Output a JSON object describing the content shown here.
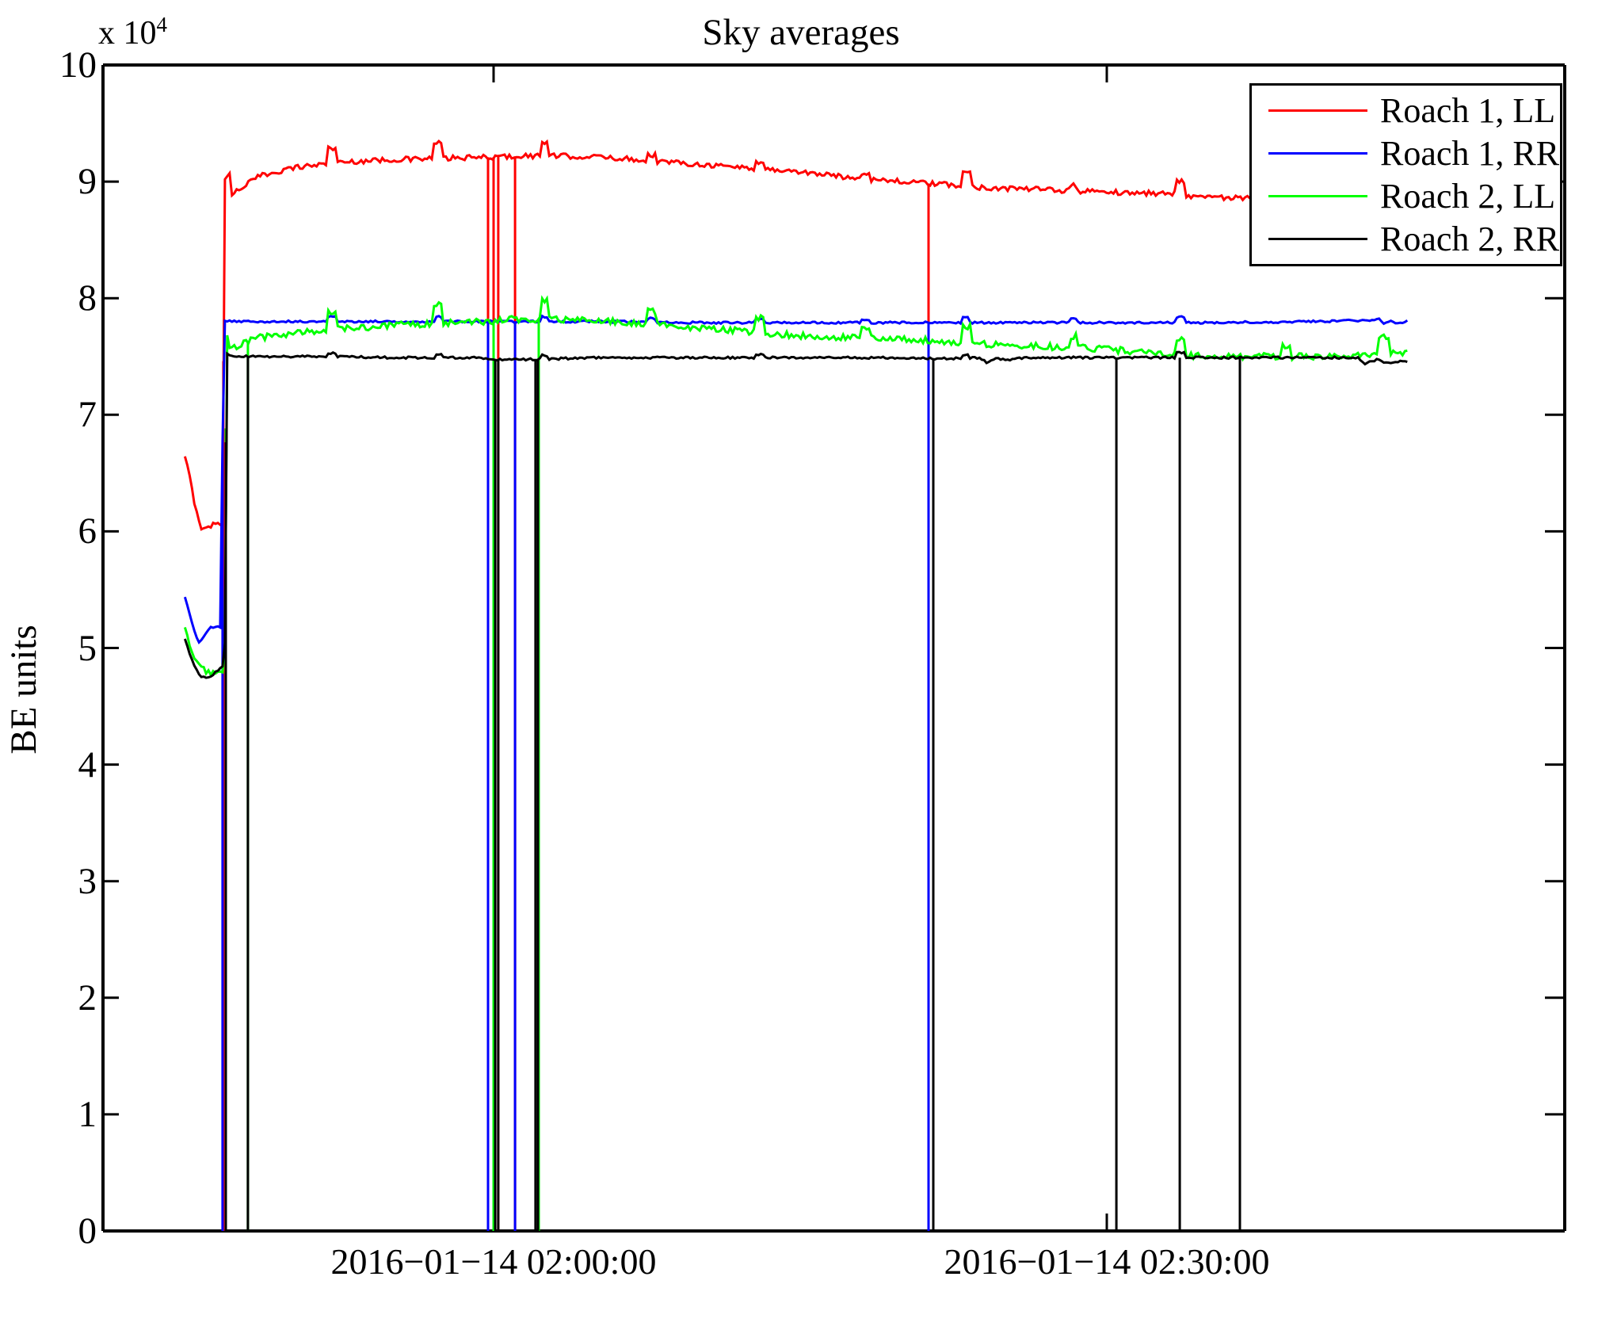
{
  "figure": {
    "title": "Sky averages",
    "y_label": "BE units",
    "y_multiplier_base": "x 10",
    "y_multiplier_exp": "4"
  },
  "legend": {
    "entries": [
      {
        "label": "Roach 1, LL",
        "color": "#ff0000"
      },
      {
        "label": "Roach 1, RR",
        "color": "#0000ff"
      },
      {
        "label": "Roach 2, LL",
        "color": "#00ff00"
      },
      {
        "label": "Roach 2, RR",
        "color": "#000000"
      }
    ]
  },
  "chart_data": {
    "type": "line",
    "title": "Sky averages",
    "xlabel": "",
    "ylabel": "BE units",
    "y_units_multiplier": 10000,
    "ylim": [
      0,
      100000
    ],
    "y_ticks": [
      0,
      1,
      2,
      3,
      4,
      5,
      6,
      7,
      8,
      9,
      10
    ],
    "x_time_base": "2016-01-14 01:45:00",
    "x_ticks": [
      {
        "t_min": 15,
        "label": "2016−01−14 02:00:00"
      },
      {
        "t_min": 45,
        "label": "2016−01−14 02:30:00"
      }
    ],
    "x_range_min": [
      -4.1,
      67.4
    ],
    "grid": false,
    "legend_position": "upper right",
    "note_units": "series points are [minutes after 01:45:00, value in units of 1e4 BE units]",
    "series": [
      {
        "name": "Roach 1, LL",
        "color": "#ff0000",
        "noise": 0.022,
        "points": [
          [
            -0.1,
            6.63
          ],
          [
            0.1,
            6.5
          ],
          [
            0.3,
            6.3
          ],
          [
            0.55,
            6.12
          ],
          [
            0.75,
            6.01
          ],
          [
            1.0,
            6.03
          ],
          [
            1.3,
            6.06
          ],
          [
            1.7,
            6.08
          ],
          [
            1.76,
            6.08
          ],
          [
            1.8,
            8.84
          ],
          [
            2.1,
            8.88
          ],
          [
            3.0,
            8.99
          ],
          [
            3.6,
            9.05
          ],
          [
            5.2,
            9.12
          ],
          [
            7.1,
            9.16
          ],
          [
            8.9,
            9.18
          ],
          [
            10.4,
            9.19
          ],
          [
            12.8,
            9.2
          ],
          [
            15.0,
            9.21
          ],
          [
            16.4,
            9.22
          ],
          [
            18.0,
            9.22
          ],
          [
            20.3,
            9.21
          ],
          [
            21.9,
            9.19
          ],
          [
            23.4,
            9.17
          ],
          [
            25.0,
            9.15
          ],
          [
            26.5,
            9.13
          ],
          [
            28.1,
            9.11
          ],
          [
            29.6,
            9.09
          ],
          [
            31.2,
            9.06
          ],
          [
            32.7,
            9.03
          ],
          [
            34.3,
            9.01
          ],
          [
            35.8,
            8.99
          ],
          [
            37.4,
            8.97
          ],
          [
            38.9,
            8.95
          ],
          [
            40.5,
            8.94
          ],
          [
            42.0,
            8.93
          ],
          [
            43.6,
            8.92
          ],
          [
            45.1,
            8.91
          ],
          [
            46.7,
            8.9
          ],
          [
            48.2,
            8.9
          ],
          [
            49.0,
            8.88
          ],
          [
            49.8,
            8.87
          ],
          [
            51.3,
            8.86
          ],
          [
            52.9,
            8.85
          ],
          [
            54.8,
            8.85
          ],
          [
            56.7,
            8.84
          ],
          [
            58.3,
            8.84
          ],
          [
            59.7,
            8.83
          ]
        ],
        "spikes": [
          [
            2.0,
            0.18,
            0.3
          ],
          [
            7.1,
            0.13,
            0.45
          ],
          [
            12.3,
            0.13,
            0.45
          ],
          [
            17.5,
            0.12,
            0.45
          ],
          [
            22.7,
            0.05,
            0.4
          ],
          [
            28.0,
            0.05,
            0.4
          ],
          [
            33.2,
            0.05,
            0.4
          ],
          [
            38.1,
            0.12,
            0.45
          ],
          [
            43.4,
            0.05,
            0.4
          ],
          [
            48.6,
            0.12,
            0.45
          ]
        ],
        "dropouts": [
          1.78,
          14.73,
          15.0,
          15.23,
          16.05,
          36.28
        ]
      },
      {
        "name": "Roach 1, RR",
        "color": "#0000ff",
        "noise": 0.009,
        "points": [
          [
            -0.1,
            5.43
          ],
          [
            0.16,
            5.28
          ],
          [
            0.39,
            5.12
          ],
          [
            0.62,
            5.04
          ],
          [
            0.85,
            5.1
          ],
          [
            1.09,
            5.17
          ],
          [
            1.4,
            5.18
          ],
          [
            1.71,
            5.18
          ],
          [
            1.76,
            7.84
          ],
          [
            1.9,
            7.8
          ],
          [
            5,
            7.8
          ],
          [
            10,
            7.8
          ],
          [
            15,
            7.8
          ],
          [
            20,
            7.8
          ],
          [
            25,
            7.79
          ],
          [
            30,
            7.79
          ],
          [
            35,
            7.79
          ],
          [
            40,
            7.79
          ],
          [
            45,
            7.79
          ],
          [
            50,
            7.79
          ],
          [
            55,
            7.8
          ],
          [
            57.9,
            7.81
          ],
          [
            58.3,
            7.83
          ],
          [
            58.6,
            7.78
          ],
          [
            58.9,
            7.81
          ],
          [
            59.3,
            7.78
          ],
          [
            59.7,
            7.8
          ]
        ],
        "spikes": [
          [
            7.1,
            0.04,
            0.4
          ],
          [
            12.3,
            0.04,
            0.4
          ],
          [
            17.5,
            0.04,
            0.4
          ],
          [
            22.7,
            0.03,
            0.4
          ],
          [
            28.0,
            0.03,
            0.4
          ],
          [
            33.2,
            0.03,
            0.4
          ],
          [
            38.1,
            0.04,
            0.4
          ],
          [
            43.4,
            0.03,
            0.4
          ],
          [
            48.6,
            0.05,
            0.5
          ]
        ],
        "dropouts": [
          1.74,
          14.73,
          16.05,
          36.28
        ]
      },
      {
        "name": "Roach 2, LL",
        "color": "#00ff00",
        "noise": 0.028,
        "points": [
          [
            -0.1,
            5.18
          ],
          [
            0.16,
            5.0
          ],
          [
            0.47,
            4.88
          ],
          [
            0.78,
            4.82
          ],
          [
            1.09,
            4.78
          ],
          [
            1.4,
            4.77
          ],
          [
            1.85,
            4.79
          ],
          [
            1.92,
            7.72
          ],
          [
            2.05,
            7.58
          ],
          [
            2.2,
            7.56
          ],
          [
            2.5,
            7.6
          ],
          [
            3.0,
            7.63
          ],
          [
            3.5,
            7.66
          ],
          [
            5.2,
            7.7
          ],
          [
            7.1,
            7.73
          ],
          [
            8.7,
            7.75
          ],
          [
            10.2,
            7.77
          ],
          [
            11.8,
            7.78
          ],
          [
            13.3,
            7.79
          ],
          [
            14.9,
            7.8
          ],
          [
            16.0,
            7.82
          ],
          [
            17.6,
            7.82
          ],
          [
            19.1,
            7.81
          ],
          [
            20.7,
            7.8
          ],
          [
            22.2,
            7.78
          ],
          [
            23.8,
            7.76
          ],
          [
            25.3,
            7.74
          ],
          [
            26.9,
            7.72
          ],
          [
            28.4,
            7.7
          ],
          [
            30.0,
            7.68
          ],
          [
            31.5,
            7.67
          ],
          [
            33.1,
            7.66
          ],
          [
            34.6,
            7.65
          ],
          [
            36.3,
            7.64
          ],
          [
            38.1,
            7.62
          ],
          [
            39.7,
            7.6
          ],
          [
            41.2,
            7.59
          ],
          [
            42.8,
            7.58
          ],
          [
            44.3,
            7.57
          ],
          [
            45.9,
            7.55
          ],
          [
            47.4,
            7.52
          ],
          [
            49.0,
            7.51
          ],
          [
            50.5,
            7.5
          ],
          [
            52.1,
            7.5
          ],
          [
            53.6,
            7.5
          ],
          [
            55.2,
            7.5
          ],
          [
            56.7,
            7.51
          ],
          [
            58.3,
            7.52
          ],
          [
            59.4,
            7.53
          ],
          [
            59.7,
            7.55
          ]
        ],
        "spikes": [
          [
            7.1,
            0.16,
            0.45
          ],
          [
            12.3,
            0.16,
            0.45
          ],
          [
            17.5,
            0.15,
            0.45
          ],
          [
            22.7,
            0.12,
            0.4
          ],
          [
            28.0,
            0.12,
            0.4
          ],
          [
            33.2,
            0.1,
            0.4
          ],
          [
            38.1,
            0.14,
            0.45
          ],
          [
            43.4,
            0.1,
            0.4
          ],
          [
            48.6,
            0.15,
            0.5
          ],
          [
            53.8,
            0.08,
            0.4
          ],
          [
            58.55,
            0.15,
            0.5
          ]
        ],
        "dropouts": [
          1.9,
          2.98,
          15.0,
          17.21
        ]
      },
      {
        "name": "Roach 2, RR",
        "color": "#000000",
        "noise": 0.009,
        "points": [
          [
            -0.1,
            5.08
          ],
          [
            0.16,
            4.93
          ],
          [
            0.39,
            4.83
          ],
          [
            0.62,
            4.76
          ],
          [
            0.93,
            4.74
          ],
          [
            1.24,
            4.76
          ],
          [
            1.55,
            4.82
          ],
          [
            1.85,
            4.85
          ],
          [
            1.92,
            7.53
          ],
          [
            2.2,
            7.5
          ],
          [
            3.0,
            7.5
          ],
          [
            7.1,
            7.5
          ],
          [
            10,
            7.49
          ],
          [
            14,
            7.49
          ],
          [
            15.5,
            7.47
          ],
          [
            18,
            7.48
          ],
          [
            20,
            7.49
          ],
          [
            25,
            7.49
          ],
          [
            30,
            7.49
          ],
          [
            35,
            7.49
          ],
          [
            36.5,
            7.48
          ],
          [
            38.8,
            7.49
          ],
          [
            39.1,
            7.45
          ],
          [
            39.6,
            7.48
          ],
          [
            40.3,
            7.47
          ],
          [
            41,
            7.49
          ],
          [
            45,
            7.49
          ],
          [
            48.6,
            7.49
          ],
          [
            50,
            7.49
          ],
          [
            55,
            7.49
          ],
          [
            57.3,
            7.49
          ],
          [
            57.6,
            7.44
          ],
          [
            58.2,
            7.47
          ],
          [
            58.8,
            7.44
          ],
          [
            59.3,
            7.46
          ],
          [
            59.7,
            7.46
          ]
        ],
        "spikes": [
          [
            7.1,
            0.03,
            0.4
          ],
          [
            12.3,
            0.03,
            0.4
          ],
          [
            17.5,
            0.03,
            0.4
          ],
          [
            28.0,
            0.03,
            0.4
          ],
          [
            38.1,
            0.03,
            0.4
          ],
          [
            48.6,
            0.04,
            0.5
          ]
        ],
        "dropouts": [
          1.9,
          2.98,
          15.08,
          15.23,
          17.05,
          17.17,
          36.51,
          45.47,
          48.57,
          51.51
        ]
      }
    ]
  }
}
